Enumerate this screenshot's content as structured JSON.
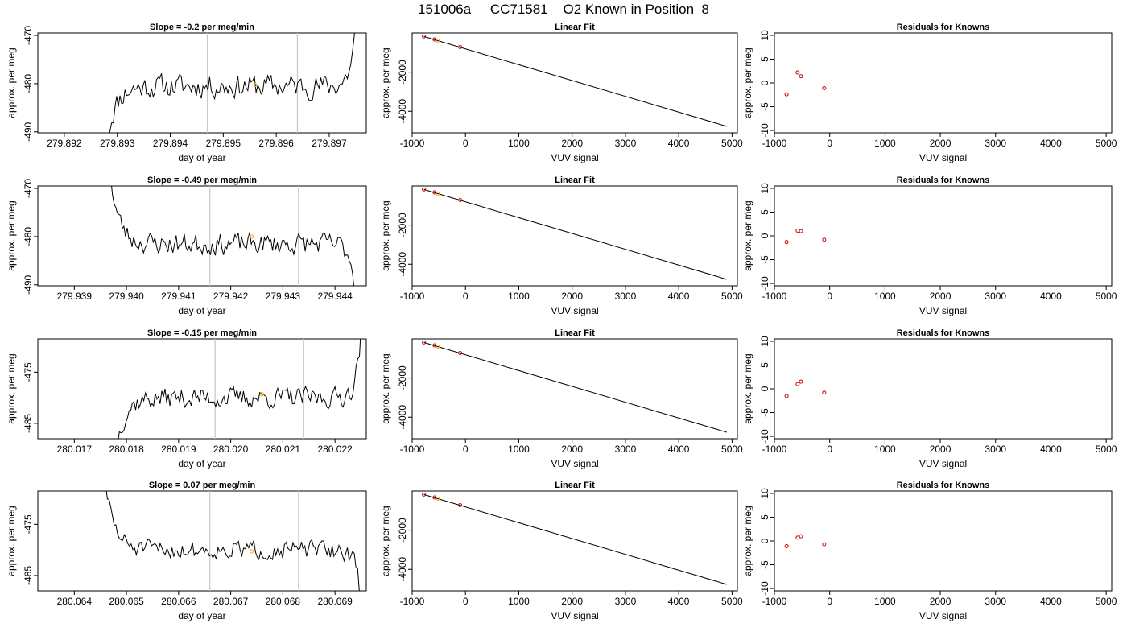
{
  "page": {
    "title": "151006a     CC71581    O2 Known in Position  8"
  },
  "colors": {
    "line": "#000000",
    "point_known": "#cc0000",
    "point_highlight": "#ffa500",
    "vline": "#c8c8c8"
  },
  "chart_data": [
    {
      "type": "line",
      "row": 0,
      "col": 0,
      "title": "Slope =  -0.2  per meg/min",
      "xlabel": "day of year",
      "ylabel": "approx. per meg",
      "xlim": [
        279.8915,
        279.8977
      ],
      "ylim": [
        -490.2,
        -469.5
      ],
      "xticks": [
        279.892,
        279.893,
        279.894,
        279.895,
        279.896,
        279.897
      ],
      "xtick_labels": [
        "279.892",
        "279.893",
        "279.894",
        "279.895",
        "279.896",
        "279.897"
      ],
      "yticks": [
        -470,
        -480,
        -490
      ],
      "ytick_labels": [
        "-470",
        "-480",
        "-490"
      ],
      "vlines": [
        279.8947,
        279.8964
      ],
      "x_start": 279.8928,
      "x_end": 279.8975,
      "baseline": -480.5,
      "start_level": -492,
      "end_level": -468,
      "noise": 2.2,
      "seed": 11,
      "highlight_point": {
        "x": 279.8956,
        "y": -480.3
      }
    },
    {
      "type": "scatter",
      "row": 0,
      "col": 1,
      "title": "Linear Fit",
      "xlabel": "VUV signal",
      "ylabel": "approx. per meg",
      "xlim": [
        -1000,
        5100
      ],
      "ylim": [
        -5100,
        0
      ],
      "xticks": [
        -1000,
        0,
        1000,
        2000,
        3000,
        4000,
        5000
      ],
      "xtick_labels": [
        "-1000",
        "0",
        "1000",
        "2000",
        "3000",
        "4000",
        "5000"
      ],
      "yticks": [
        -2000,
        -4000
      ],
      "ytick_labels": [
        "-2000",
        "-4000"
      ],
      "fit_line": [
        [
          -780,
          -180
        ],
        [
          4900,
          -4770
        ]
      ],
      "points": [
        {
          "x": -780,
          "y": -180,
          "c": "known"
        },
        {
          "x": -580,
          "y": -330,
          "c": "known"
        },
        {
          "x": -520,
          "y": -390,
          "c": "highlight"
        },
        {
          "x": -100,
          "y": -720,
          "c": "known"
        }
      ]
    },
    {
      "type": "scatter",
      "row": 0,
      "col": 2,
      "title": "Residuals for Knowns",
      "xlabel": "VUV signal",
      "ylabel": "approx. per meg",
      "xlim": [
        -1000,
        5100
      ],
      "ylim": [
        -10.5,
        10.5
      ],
      "xticks": [
        -1000,
        0,
        1000,
        2000,
        3000,
        4000,
        5000
      ],
      "xtick_labels": [
        "-1000",
        "0",
        "1000",
        "2000",
        "3000",
        "4000",
        "5000"
      ],
      "yticks": [
        10,
        5,
        0,
        -5,
        -10
      ],
      "ytick_labels": [
        "10",
        "5",
        "0",
        "-5",
        "-10"
      ],
      "points": [
        {
          "x": -780,
          "y": -2.4,
          "c": "known"
        },
        {
          "x": -580,
          "y": 2.2,
          "c": "known"
        },
        {
          "x": -520,
          "y": 1.4,
          "c": "known"
        },
        {
          "x": -100,
          "y": -1.1,
          "c": "known"
        }
      ]
    },
    {
      "type": "line",
      "row": 1,
      "col": 0,
      "title": "Slope =  -0.49  per meg/min",
      "xlabel": "day of year",
      "ylabel": "approx. per meg",
      "xlim": [
        279.9383,
        279.9446
      ],
      "ylim": [
        -490.2,
        -469.5
      ],
      "xticks": [
        279.939,
        279.94,
        279.941,
        279.942,
        279.943,
        279.944
      ],
      "xtick_labels": [
        "279.939",
        "279.940",
        "279.941",
        "279.942",
        "279.943",
        "279.944"
      ],
      "yticks": [
        -470,
        -480,
        -490
      ],
      "ytick_labels": [
        "-470",
        "-480",
        "-490"
      ],
      "vlines": [
        279.9416,
        279.9433
      ],
      "x_start": 279.9397,
      "x_end": 279.9444,
      "baseline": -481.5,
      "start_level": -468,
      "end_level": -492,
      "noise": 2.0,
      "seed": 23,
      "highlight_point": {
        "x": 279.9424,
        "y": -480.0
      }
    },
    {
      "type": "scatter",
      "row": 1,
      "col": 1,
      "title": "Linear Fit",
      "xlabel": "VUV signal",
      "ylabel": "approx. per meg",
      "xlim": [
        -1000,
        5100
      ],
      "ylim": [
        -5100,
        0
      ],
      "xticks": [
        -1000,
        0,
        1000,
        2000,
        3000,
        4000,
        5000
      ],
      "xtick_labels": [
        "-1000",
        "0",
        "1000",
        "2000",
        "3000",
        "4000",
        "5000"
      ],
      "yticks": [
        -2000,
        -4000
      ],
      "ytick_labels": [
        "-2000",
        "-4000"
      ],
      "fit_line": [
        [
          -780,
          -180
        ],
        [
          4900,
          -4770
        ]
      ],
      "points": [
        {
          "x": -780,
          "y": -180,
          "c": "known"
        },
        {
          "x": -580,
          "y": -330,
          "c": "known"
        },
        {
          "x": -520,
          "y": -390,
          "c": "highlight"
        },
        {
          "x": -100,
          "y": -720,
          "c": "known"
        }
      ]
    },
    {
      "type": "scatter",
      "row": 1,
      "col": 2,
      "title": "Residuals for Knowns",
      "xlabel": "VUV signal",
      "ylabel": "approx. per meg",
      "xlim": [
        -1000,
        5100
      ],
      "ylim": [
        -10.5,
        10.5
      ],
      "xticks": [
        -1000,
        0,
        1000,
        2000,
        3000,
        4000,
        5000
      ],
      "xtick_labels": [
        "-1000",
        "0",
        "1000",
        "2000",
        "3000",
        "4000",
        "5000"
      ],
      "yticks": [
        10,
        5,
        0,
        -5,
        -10
      ],
      "ytick_labels": [
        "10",
        "5",
        "0",
        "-5",
        "-10"
      ],
      "points": [
        {
          "x": -780,
          "y": -1.3,
          "c": "known"
        },
        {
          "x": -580,
          "y": 1.1,
          "c": "known"
        },
        {
          "x": -520,
          "y": 1.0,
          "c": "known"
        },
        {
          "x": -100,
          "y": -0.8,
          "c": "known"
        }
      ]
    },
    {
      "type": "line",
      "row": 2,
      "col": 0,
      "title": "Slope =  -0.15  per meg/min",
      "xlabel": "day of year",
      "ylabel": "approx. per meg",
      "xlim": [
        280.0163,
        280.0226
      ],
      "ylim": [
        -488,
        -468.5
      ],
      "xticks": [
        280.017,
        280.018,
        280.019,
        280.02,
        280.021,
        280.022
      ],
      "xtick_labels": [
        "280.017",
        "280.018",
        "280.019",
        "280.020",
        "280.021",
        "280.022"
      ],
      "yticks": [
        -475,
        -485
      ],
      "ytick_labels": [
        "-475",
        "-485"
      ],
      "vlines": [
        280.0197,
        280.0214
      ],
      "x_start": 280.0178,
      "x_end": 280.0225,
      "baseline": -480.0,
      "start_level": -490,
      "end_level": -467,
      "noise": 1.8,
      "seed": 37,
      "highlight_point": {
        "x": 280.0206,
        "y": -479.3
      }
    },
    {
      "type": "scatter",
      "row": 2,
      "col": 1,
      "title": "Linear Fit",
      "xlabel": "VUV signal",
      "ylabel": "approx. per meg",
      "xlim": [
        -1000,
        5100
      ],
      "ylim": [
        -5100,
        0
      ],
      "xticks": [
        -1000,
        0,
        1000,
        2000,
        3000,
        4000,
        5000
      ],
      "xtick_labels": [
        "-1000",
        "0",
        "1000",
        "2000",
        "3000",
        "4000",
        "5000"
      ],
      "yticks": [
        -2000,
        -4000
      ],
      "ytick_labels": [
        "-2000",
        "-4000"
      ],
      "fit_line": [
        [
          -780,
          -180
        ],
        [
          4900,
          -4770
        ]
      ],
      "points": [
        {
          "x": -780,
          "y": -180,
          "c": "known"
        },
        {
          "x": -580,
          "y": -330,
          "c": "known"
        },
        {
          "x": -520,
          "y": -390,
          "c": "highlight"
        },
        {
          "x": -100,
          "y": -720,
          "c": "known"
        }
      ]
    },
    {
      "type": "scatter",
      "row": 2,
      "col": 2,
      "title": "Residuals for Knowns",
      "xlabel": "VUV signal",
      "ylabel": "approx. per meg",
      "xlim": [
        -1000,
        5100
      ],
      "ylim": [
        -10.5,
        10.5
      ],
      "xticks": [
        -1000,
        0,
        1000,
        2000,
        3000,
        4000,
        5000
      ],
      "xtick_labels": [
        "-1000",
        "0",
        "1000",
        "2000",
        "3000",
        "4000",
        "5000"
      ],
      "yticks": [
        10,
        5,
        0,
        -5,
        -10
      ],
      "ytick_labels": [
        "10",
        "5",
        "0",
        "-5",
        "-10"
      ],
      "points": [
        {
          "x": -780,
          "y": -1.5,
          "c": "known"
        },
        {
          "x": -580,
          "y": 1.0,
          "c": "known"
        },
        {
          "x": -520,
          "y": 1.5,
          "c": "known"
        },
        {
          "x": -100,
          "y": -0.8,
          "c": "known"
        }
      ]
    },
    {
      "type": "line",
      "row": 3,
      "col": 0,
      "title": "Slope =  0.07  per meg/min",
      "xlabel": "day of year",
      "ylabel": "approx. per meg",
      "xlim": [
        280.0633,
        280.0696
      ],
      "ylim": [
        -488,
        -468.5
      ],
      "xticks": [
        280.064,
        280.065,
        280.066,
        280.067,
        280.068,
        280.069
      ],
      "xtick_labels": [
        "280.064",
        "280.065",
        "280.066",
        "280.067",
        "280.068",
        "280.069"
      ],
      "yticks": [
        -475,
        -485
      ],
      "ytick_labels": [
        "-475",
        "-485"
      ],
      "vlines": [
        280.0666,
        280.0683
      ],
      "x_start": 280.0646,
      "x_end": 280.0695,
      "baseline": -480.0,
      "start_level": -467,
      "end_level": -490,
      "noise": 1.6,
      "seed": 51,
      "highlight_point": {
        "x": 280.0674,
        "y": -480.3
      }
    },
    {
      "type": "scatter",
      "row": 3,
      "col": 1,
      "title": "Linear Fit",
      "xlabel": "VUV signal",
      "ylabel": "approx. per meg",
      "xlim": [
        -1000,
        5100
      ],
      "ylim": [
        -5100,
        0
      ],
      "xticks": [
        -1000,
        0,
        1000,
        2000,
        3000,
        4000,
        5000
      ],
      "xtick_labels": [
        "-1000",
        "0",
        "1000",
        "2000",
        "3000",
        "4000",
        "5000"
      ],
      "yticks": [
        -2000,
        -4000
      ],
      "ytick_labels": [
        "-2000",
        "-4000"
      ],
      "fit_line": [
        [
          -780,
          -180
        ],
        [
          4900,
          -4770
        ]
      ],
      "points": [
        {
          "x": -780,
          "y": -180,
          "c": "known"
        },
        {
          "x": -580,
          "y": -330,
          "c": "known"
        },
        {
          "x": -520,
          "y": -390,
          "c": "highlight"
        },
        {
          "x": -100,
          "y": -720,
          "c": "known"
        }
      ]
    },
    {
      "type": "scatter",
      "row": 3,
      "col": 2,
      "title": "Residuals for Knowns",
      "xlabel": "VUV signal",
      "ylabel": "approx. per meg",
      "xlim": [
        -1000,
        5100
      ],
      "ylim": [
        -10.5,
        10.5
      ],
      "xticks": [
        -1000,
        0,
        1000,
        2000,
        3000,
        4000,
        5000
      ],
      "xtick_labels": [
        "-1000",
        "0",
        "1000",
        "2000",
        "3000",
        "4000",
        "5000"
      ],
      "yticks": [
        10,
        5,
        0,
        -5,
        -10
      ],
      "ytick_labels": [
        "10",
        "5",
        "0",
        "-5",
        "-10"
      ],
      "points": [
        {
          "x": -780,
          "y": -1.1,
          "c": "known"
        },
        {
          "x": -580,
          "y": 0.7,
          "c": "known"
        },
        {
          "x": -520,
          "y": 1.0,
          "c": "known"
        },
        {
          "x": -100,
          "y": -0.7,
          "c": "known"
        }
      ]
    }
  ]
}
